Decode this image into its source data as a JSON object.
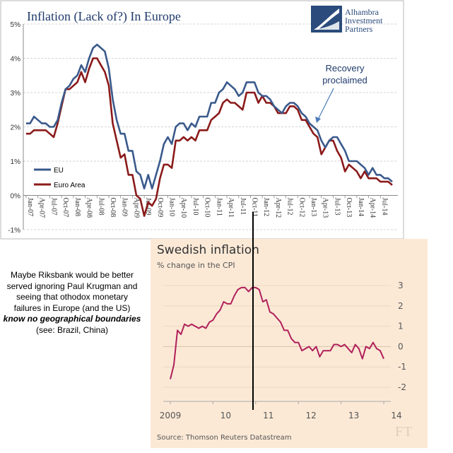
{
  "top_chart": {
    "title": "Inflation (Lack of?) In Europe",
    "logo_lines": [
      "Alhambra",
      "Investment",
      "Partners"
    ],
    "annotation_lines": [
      "Recovery",
      "proclaimed"
    ],
    "legend": [
      {
        "label": "EU",
        "color": "#3a5a8c"
      },
      {
        "label": "Euro Area",
        "color": "#8b1a1a"
      }
    ]
  },
  "ft_chart": {
    "title": "Swedish inflation",
    "subtitle": "% change in the CPI",
    "source": "Source: Thomson Reuters Datastream",
    "logo": "FT"
  },
  "comment": {
    "plain": "Maybe Riksbank would be better served ignoring Paul Krugman and seeing that othodox monetary failures in Europe (and the US)",
    "bold": "know no geographical boundaries",
    "tail": "(see: Brazil, China)"
  },
  "chart_data": [
    {
      "type": "line",
      "title": "Inflation (Lack of?) In Europe",
      "ylim": [
        -1,
        5
      ],
      "y_ticks": [
        "5%",
        "4%",
        "3%",
        "2%",
        "1%",
        "0%",
        "-1%"
      ],
      "x_ticks": [
        "Jan-07",
        "Apr-07",
        "Jul-07",
        "Oct-07",
        "Jan-08",
        "Apr-08",
        "Jul-08",
        "Oct-08",
        "Jan-09",
        "Apr-09",
        "Jul-09",
        "Oct-09",
        "Jan-10",
        "Apr-10",
        "Jul-10",
        "Oct-10",
        "Jan-11",
        "Apr-11",
        "Jul-11",
        "Oct-11",
        "Jan-12",
        "Apr-12",
        "Jul-12",
        "Oct-12",
        "Jan-13",
        "Apr-13",
        "Jul-13",
        "Oct-13",
        "Jan-14",
        "Apr-14",
        "Jul-14"
      ],
      "x_start": "2007-01",
      "grid": true,
      "legend_position": "bottom-left",
      "series": [
        {
          "name": "EU",
          "color": "#3a5a8c",
          "values": [
            2.1,
            2.1,
            2.3,
            2.2,
            2.1,
            2.1,
            2.0,
            2.0,
            2.2,
            2.7,
            3.1,
            3.2,
            3.4,
            3.5,
            3.8,
            3.6,
            4.0,
            4.3,
            4.4,
            4.3,
            4.2,
            3.7,
            2.8,
            2.2,
            1.8,
            1.8,
            1.3,
            1.3,
            0.7,
            0.6,
            0.2,
            0.6,
            0.2,
            0.6,
            1.0,
            1.5,
            1.7,
            1.5,
            2.0,
            2.1,
            2.1,
            1.9,
            2.1,
            2.0,
            2.3,
            2.3,
            2.3,
            2.7,
            2.7,
            3.0,
            3.1,
            3.3,
            3.2,
            3.1,
            2.9,
            3.0,
            3.3,
            3.3,
            3.3,
            3.0,
            2.9,
            2.9,
            2.8,
            2.6,
            2.5,
            2.4,
            2.6,
            2.7,
            2.7,
            2.6,
            2.4,
            2.3,
            2.1,
            2.0,
            1.9,
            1.6,
            1.4,
            1.6,
            1.7,
            1.7,
            1.5,
            1.3,
            1.0,
            1.0,
            1.0,
            0.9,
            0.8,
            0.6,
            0.8,
            0.6,
            0.6,
            0.5,
            0.5,
            0.4
          ]
        },
        {
          "name": "Euro Area",
          "color": "#8b1a1a",
          "values": [
            1.8,
            1.8,
            1.9,
            1.9,
            1.9,
            1.9,
            1.8,
            1.7,
            2.1,
            2.6,
            3.1,
            3.1,
            3.2,
            3.3,
            3.6,
            3.3,
            3.7,
            4.0,
            4.0,
            3.8,
            3.6,
            3.2,
            2.1,
            1.6,
            1.1,
            1.2,
            0.6,
            0.6,
            0.0,
            -0.1,
            -0.6,
            -0.2,
            -0.3,
            -0.1,
            0.5,
            0.9,
            0.9,
            0.8,
            1.6,
            1.6,
            1.7,
            1.6,
            1.7,
            1.6,
            1.9,
            1.9,
            1.9,
            2.2,
            2.3,
            2.4,
            2.7,
            2.8,
            2.7,
            2.7,
            2.6,
            2.5,
            3.0,
            3.0,
            3.0,
            2.7,
            2.9,
            2.7,
            2.7,
            2.6,
            2.4,
            2.4,
            2.4,
            2.6,
            2.6,
            2.5,
            2.2,
            2.2,
            2.0,
            1.8,
            1.7,
            1.2,
            1.4,
            1.6,
            1.6,
            1.3,
            1.1,
            0.7,
            0.9,
            0.8,
            0.7,
            0.5,
            0.7,
            0.5,
            0.5,
            0.5,
            0.4,
            0.4,
            0.4,
            0.3
          ]
        }
      ]
    },
    {
      "type": "line",
      "title": "Swedish inflation",
      "subtitle": "% change in the CPI",
      "ylim": [
        -2,
        3
      ],
      "y_ticks": [
        "3",
        "2",
        "1",
        "0",
        "-1",
        "-2"
      ],
      "x_ticks": [
        "2009",
        "10",
        "11",
        "12",
        "13",
        "14"
      ],
      "x_start": "2009-01",
      "series": [
        {
          "color": "#b0205a",
          "values": [
            -1.6,
            -0.9,
            0.8,
            0.6,
            1.1,
            1.0,
            1.1,
            1.0,
            0.9,
            1.0,
            0.9,
            1.2,
            1.3,
            1.6,
            1.8,
            2.2,
            2.1,
            2.1,
            2.5,
            2.8,
            2.9,
            2.9,
            2.7,
            2.9,
            2.9,
            2.8,
            2.2,
            2.3,
            1.7,
            1.6,
            1.4,
            1.2,
            0.8,
            0.8,
            0.4,
            0.2,
            0.2,
            -0.2,
            -0.1,
            0.0,
            -0.2,
            0.0,
            -0.5,
            -0.2,
            -0.2,
            -0.2,
            0.1,
            0.1,
            0.0,
            0.1,
            -0.1,
            -0.3,
            0.1,
            -0.1,
            -0.6,
            0.0,
            -0.1,
            0.2,
            -0.1,
            -0.2,
            -0.6
          ]
        }
      ]
    }
  ]
}
